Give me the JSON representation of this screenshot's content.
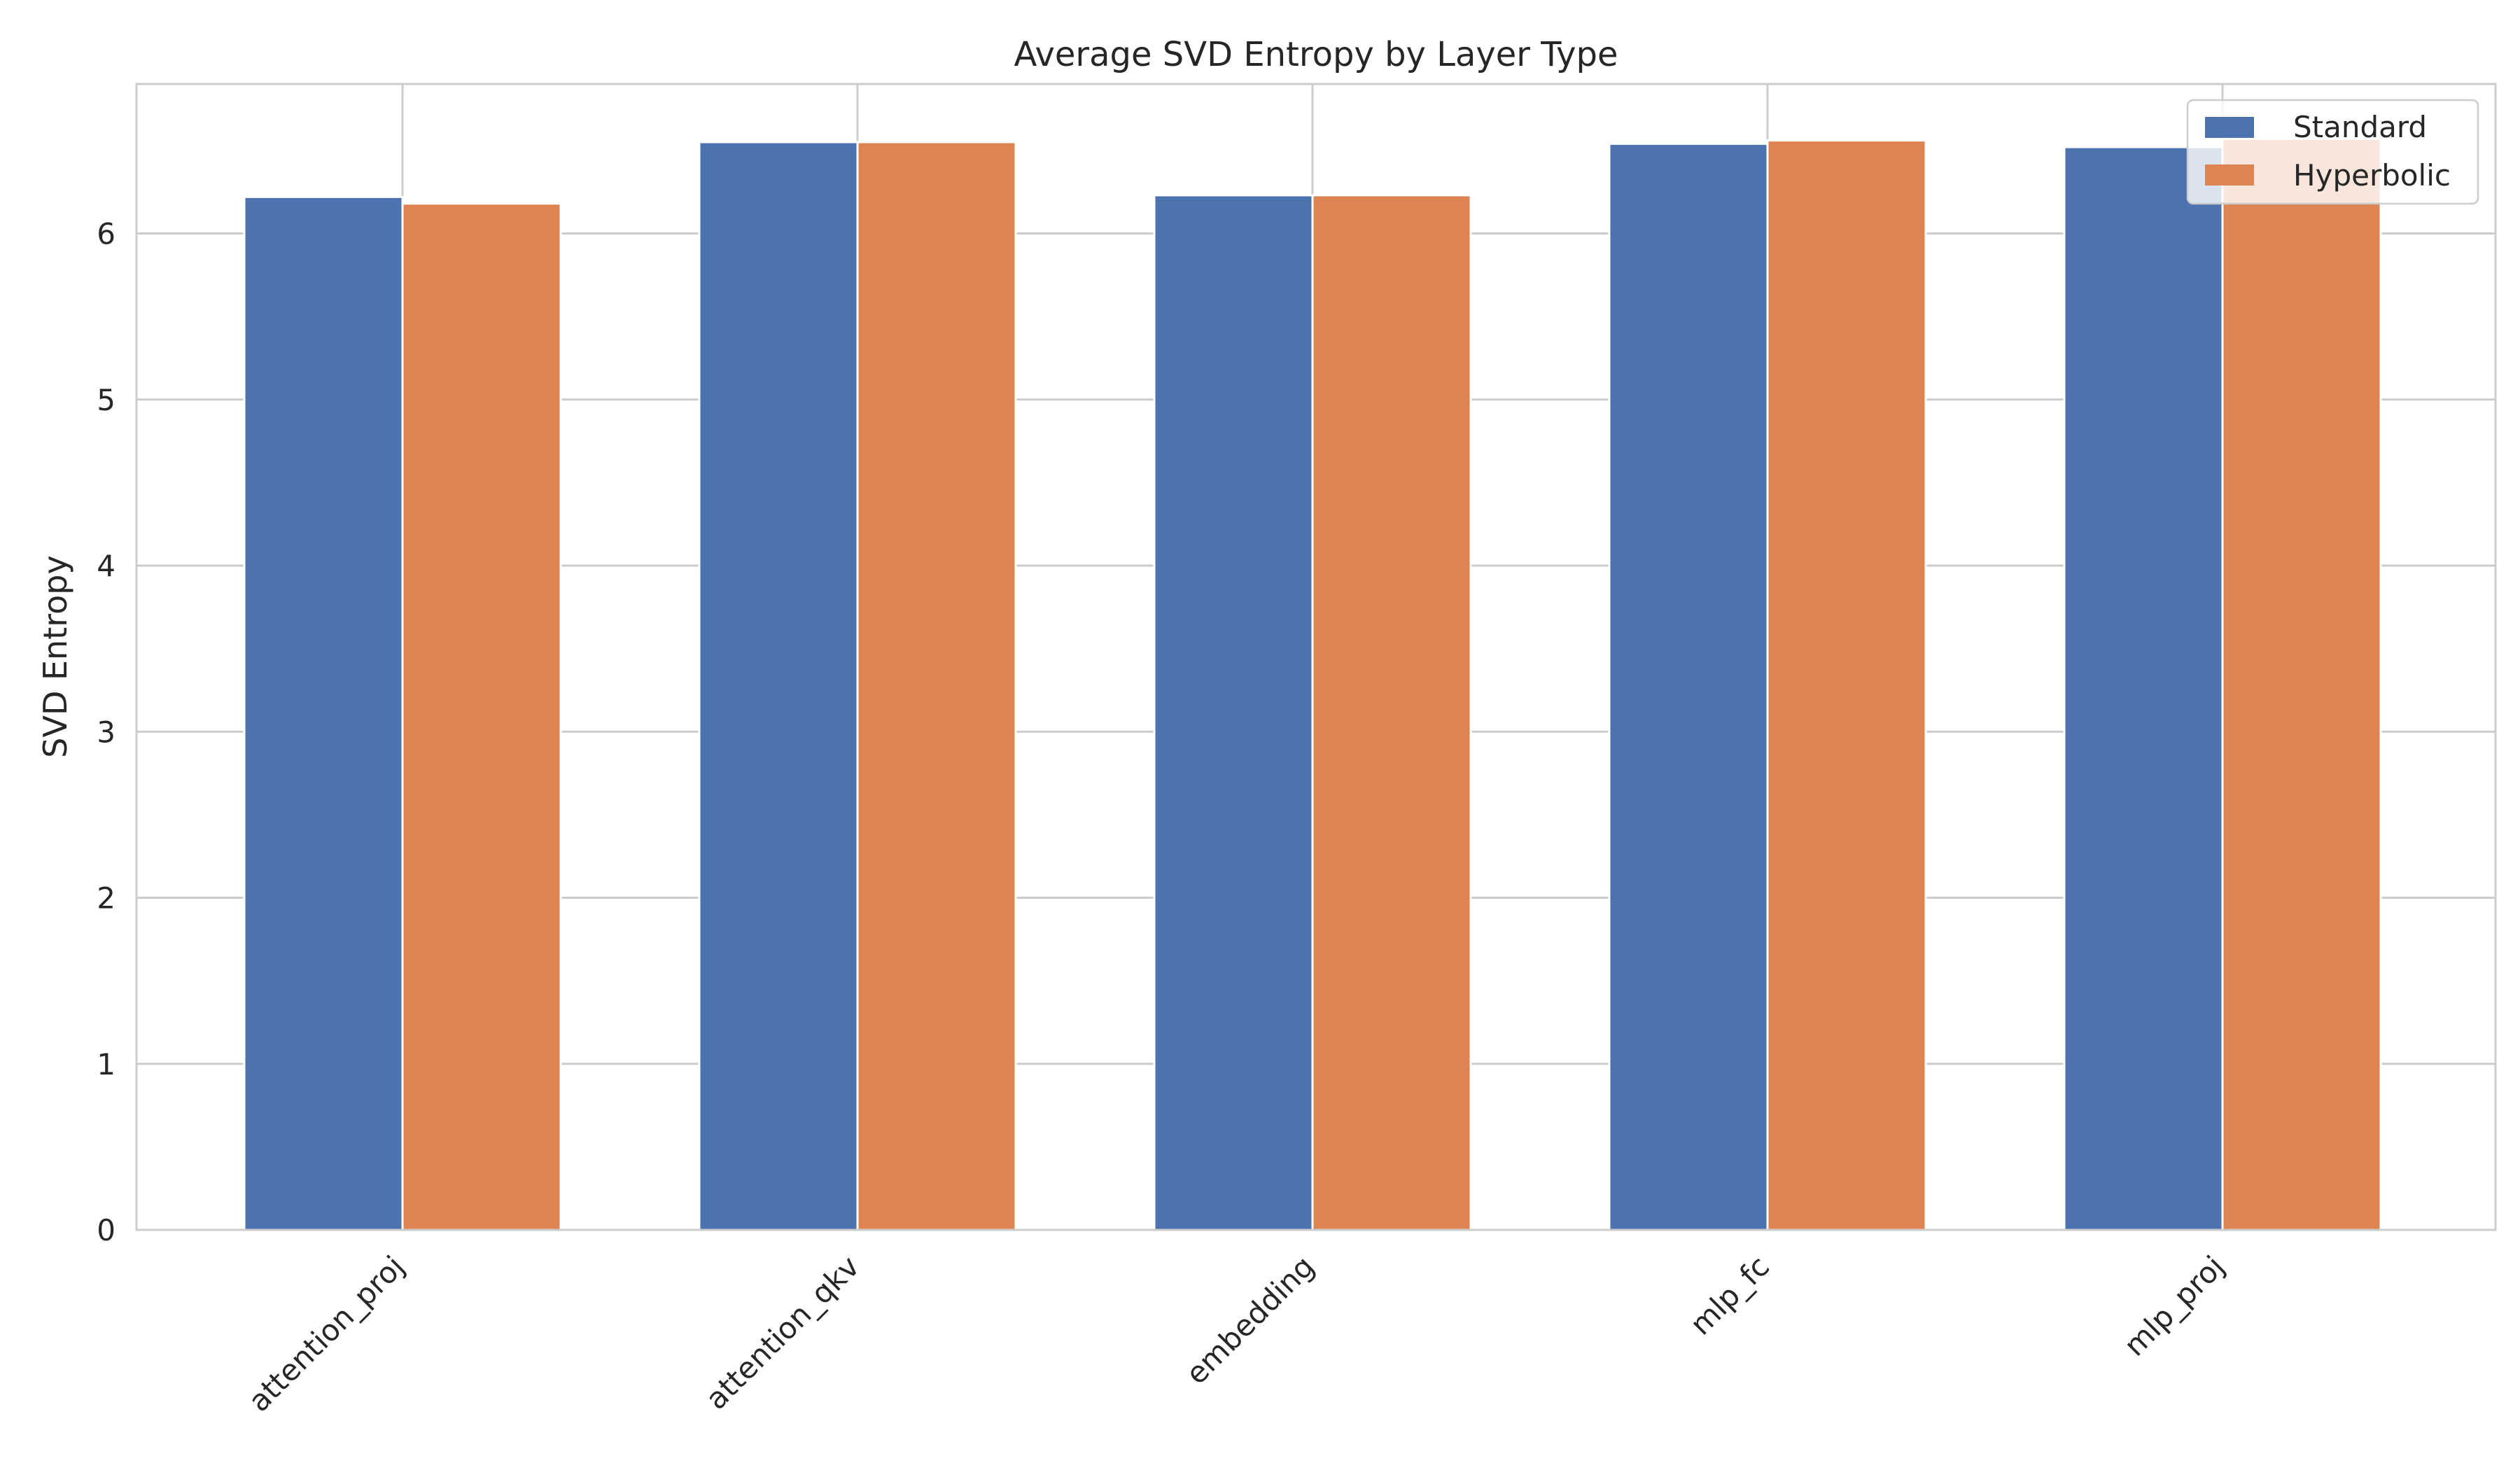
{
  "chart_data": {
    "type": "bar",
    "title": "Average SVD Entropy by Layer Type",
    "xlabel": "",
    "ylabel": "SVD Entropy",
    "categories": [
      "attention_proj",
      "attention_qkv",
      "embedding",
      "mlp_fc",
      "mlp_proj"
    ],
    "series": [
      {
        "name": "Standard",
        "color": "#4c72b0",
        "values": [
          6.22,
          6.55,
          6.23,
          6.54,
          6.52
        ]
      },
      {
        "name": "Hyperbolic",
        "color": "#dd8452",
        "values": [
          6.18,
          6.55,
          6.23,
          6.56,
          6.57
        ]
      }
    ],
    "ylim": [
      0,
      6.9
    ],
    "yticks": [
      0,
      1,
      2,
      3,
      4,
      5,
      6
    ],
    "grid": true,
    "legend_position": "top-right"
  }
}
